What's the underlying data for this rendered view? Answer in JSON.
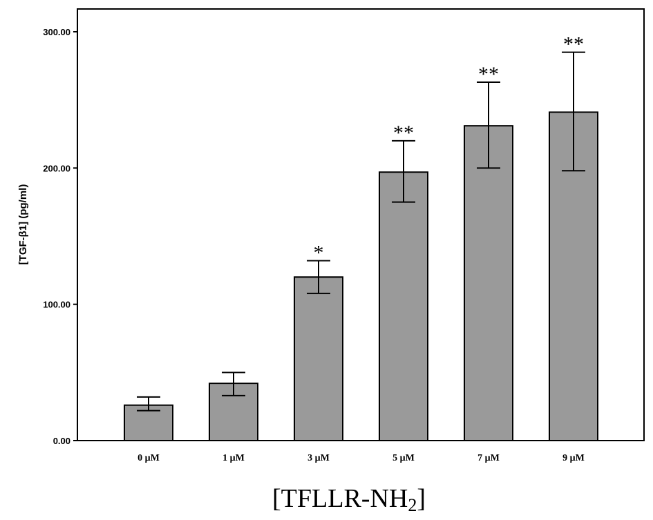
{
  "chart_data": {
    "type": "bar",
    "categories": [
      "0 μM",
      "1 μM",
      "3 μM",
      "5 μM",
      "7 μM",
      "9 μM"
    ],
    "values": [
      26,
      42,
      120,
      197,
      231,
      241
    ],
    "error_low": [
      22,
      33,
      108,
      175,
      200,
      198
    ],
    "error_high": [
      32,
      50,
      132,
      220,
      263,
      285
    ],
    "significance": [
      "",
      "",
      "*",
      "**",
      "**",
      "**"
    ],
    "ylim": [
      0,
      300
    ],
    "yticks": [
      0,
      100,
      200,
      300
    ],
    "ytick_labels": [
      "0.00",
      "100.00",
      "200.00",
      "300.00"
    ],
    "ylabel": "[TGF-β1] (pg/ml)",
    "xlabel": "[TFLLR-NH",
    "xlabel_sub": "2",
    "xlabel_suffix": "]",
    "bar_color": "#9a9a9a",
    "grid": false
  }
}
